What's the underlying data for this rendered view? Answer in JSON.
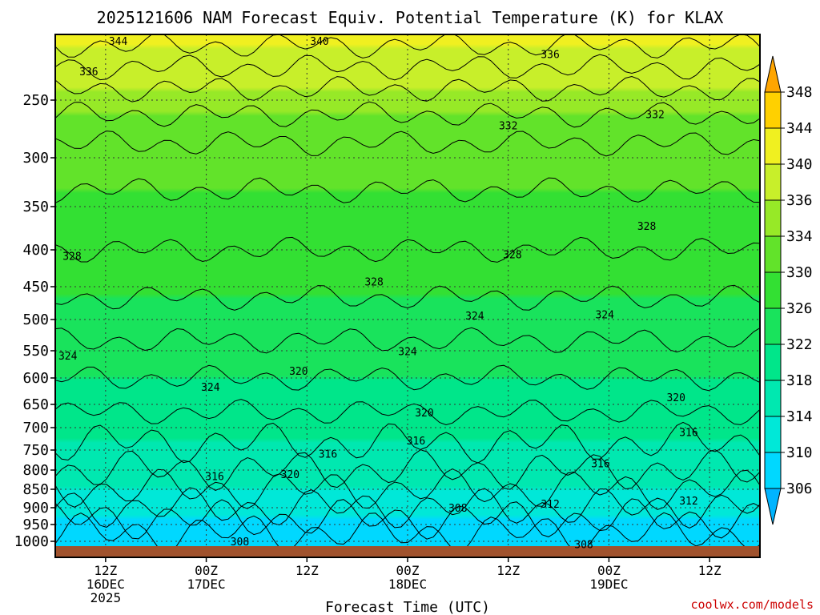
{
  "chart_data": {
    "type": "heatmap",
    "title": "2025121606 NAM Forecast Equiv. Potential Temperature (K) for KLAX",
    "xlabel": "Forecast Time (UTC)",
    "ylabel": "",
    "watermark": "coolwx.com/models",
    "pressure_ticks": [
      "250",
      "300",
      "350",
      "400",
      "450",
      "500",
      "550",
      "600",
      "650",
      "700",
      "750",
      "800",
      "850",
      "900",
      "950",
      "1000"
    ],
    "pressure_values": [
      250,
      300,
      350,
      400,
      450,
      500,
      550,
      600,
      650,
      700,
      750,
      800,
      850,
      900,
      950,
      1000
    ],
    "time_ticks": [
      {
        "hour": 6,
        "label": [
          "12Z",
          "16DEC",
          "2025"
        ]
      },
      {
        "hour": 18,
        "label": [
          "00Z",
          "17DEC"
        ]
      },
      {
        "hour": 30,
        "label": [
          "12Z"
        ]
      },
      {
        "hour": 42,
        "label": [
          "00Z",
          "18DEC"
        ]
      },
      {
        "hour": 54,
        "label": [
          "12Z"
        ]
      },
      {
        "hour": 66,
        "label": [
          "00Z",
          "19DEC"
        ]
      },
      {
        "hour": 78,
        "label": [
          "12Z"
        ]
      }
    ],
    "time_range_hours": [
      0,
      84
    ],
    "pressure_range": [
      200,
      1030
    ],
    "colorbar": {
      "levels": [
        "306",
        "310",
        "314",
        "318",
        "322",
        "326",
        "330",
        "334",
        "336",
        "340",
        "344",
        "348"
      ],
      "colors": [
        "#00b4ff",
        "#00d8ff",
        "#00e8d8",
        "#00e8b0",
        "#00e68a",
        "#19e35c",
        "#33e033",
        "#62e32a",
        "#97e927",
        "#c8ef2a",
        "#f0f020",
        "#ffd000",
        "#ffa500"
      ]
    },
    "profile_mean": [
      {
        "p": 200,
        "theta": 341
      },
      {
        "p": 250,
        "theta": 335
      },
      {
        "p": 300,
        "theta": 331
      },
      {
        "p": 400,
        "theta": 328
      },
      {
        "p": 500,
        "theta": 325
      },
      {
        "p": 600,
        "theta": 322
      },
      {
        "p": 700,
        "theta": 319
      },
      {
        "p": 800,
        "theta": 316
      },
      {
        "p": 900,
        "theta": 312
      },
      {
        "p": 950,
        "theta": 309
      },
      {
        "p": 1000,
        "theta": 307
      }
    ],
    "contour_labels": [
      {
        "text": "344",
        "hour": 7.5,
        "p": 205
      },
      {
        "text": "340",
        "hour": 31.5,
        "p": 205
      },
      {
        "text": "336",
        "hour": 59,
        "p": 215
      },
      {
        "text": "336",
        "hour": 4,
        "p": 228
      },
      {
        "text": "332",
        "hour": 71.5,
        "p": 262
      },
      {
        "text": "332",
        "hour": 54,
        "p": 272
      },
      {
        "text": "328",
        "hour": 70.5,
        "p": 372
      },
      {
        "text": "328",
        "hour": 54.5,
        "p": 406
      },
      {
        "text": "328",
        "hour": 38,
        "p": 443
      },
      {
        "text": "328",
        "hour": 2,
        "p": 408
      },
      {
        "text": "324",
        "hour": 50,
        "p": 494
      },
      {
        "text": "324",
        "hour": 65.5,
        "p": 492
      },
      {
        "text": "324",
        "hour": 42,
        "p": 551
      },
      {
        "text": "324",
        "hour": 1.5,
        "p": 559
      },
      {
        "text": "324",
        "hour": 18.5,
        "p": 617
      },
      {
        "text": "320",
        "hour": 29,
        "p": 587
      },
      {
        "text": "320",
        "hour": 74,
        "p": 636
      },
      {
        "text": "320",
        "hour": 44,
        "p": 667
      },
      {
        "text": "316",
        "hour": 75.5,
        "p": 710
      },
      {
        "text": "316",
        "hour": 43,
        "p": 729
      },
      {
        "text": "316",
        "hour": 32.5,
        "p": 759
      },
      {
        "text": "316",
        "hour": 65,
        "p": 783
      },
      {
        "text": "316",
        "hour": 19,
        "p": 816
      },
      {
        "text": "320",
        "hour": 28,
        "p": 810
      },
      {
        "text": "312",
        "hour": 59,
        "p": 889
      },
      {
        "text": "312",
        "hour": 75.5,
        "p": 880
      },
      {
        "text": "308",
        "hour": 48,
        "p": 900
      },
      {
        "text": "308",
        "hour": 22,
        "p": 1000
      },
      {
        "text": "308",
        "hour": 63,
        "p": 1005
      }
    ]
  }
}
